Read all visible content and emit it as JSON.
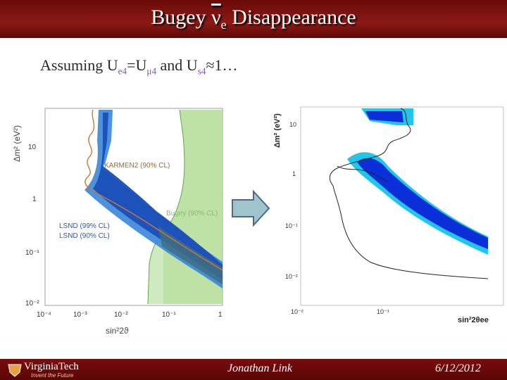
{
  "slide": {
    "title": {
      "pre": "Bugey ",
      "nu": "ν",
      "sub": "e",
      "post": " Disappearance"
    },
    "subtitle": {
      "t1": "Assuming U",
      "s1": "e4",
      "t2": "=U",
      "s2": "μ4",
      "t3": " and U",
      "s3": "s4",
      "t4": "≈1…"
    }
  },
  "left_plot": {
    "y_axis_label": "Δm² (eV²)",
    "x_axis_label": "sin²2ϑ",
    "y_ticks": [
      "10",
      "1",
      "10⁻¹",
      "10⁻²"
    ],
    "x_ticks": [
      "10⁻⁴",
      "10⁻³",
      "10⁻²",
      "10⁻¹",
      "1"
    ],
    "labels": {
      "karmen": "KARMEN2 (90% CL)",
      "bugey": "Bugey (90% CL)",
      "lsnd99": "LSND (99% CL)",
      "lsnd90": "LSND (90% CL)"
    },
    "colors": {
      "bugey": "#a8d888",
      "lsnd_outer": "#3a86d8",
      "lsnd_inner": "#1a4fb8",
      "karmen": "#c87838"
    }
  },
  "right_plot": {
    "y_axis_label": "Δm² (eV²)",
    "x_axis_label": "sin²2θee",
    "y_ticks": [
      "10",
      "1",
      "10⁻¹",
      "10⁻²"
    ],
    "x_ticks": [
      "10⁻²",
      "10⁻¹"
    ],
    "colors": {
      "outer": "#23c6e8",
      "inner": "#0a2fd8"
    }
  },
  "arrow": {
    "icon": "right-arrow-icon",
    "color": "#9fc4cc"
  },
  "footer": {
    "logo_text": "VirginiaTech",
    "logo_tagline": "Invent the Future",
    "author": "Jonathan Link",
    "date": "6/12/2012"
  }
}
